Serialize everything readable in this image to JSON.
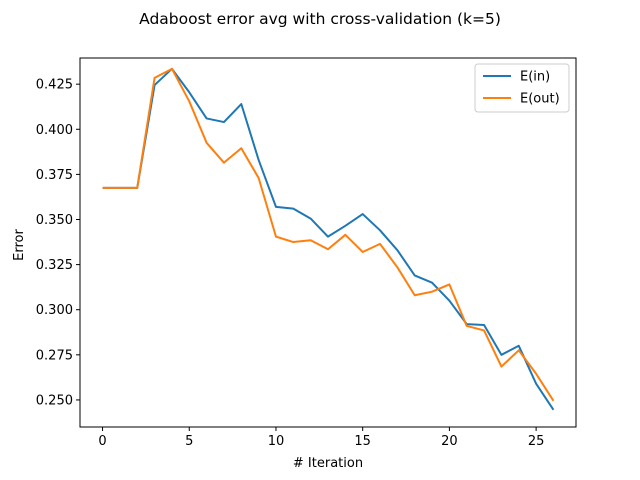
{
  "chart_data": {
    "type": "line",
    "title": "Adaboost error avg with cross-validation (k=5)",
    "xlabel": "# Iteration",
    "ylabel": "Error",
    "xlim": [
      -1.3,
      27.3
    ],
    "ylim": [
      0.235,
      0.4395
    ],
    "xticks": [
      0,
      5,
      10,
      15,
      20,
      25
    ],
    "yticks": [
      0.25,
      0.275,
      0.3,
      0.325,
      0.35,
      0.375,
      0.4,
      0.425
    ],
    "ytick_labels": [
      "0.250",
      "0.275",
      "0.300",
      "0.325",
      "0.350",
      "0.375",
      "0.400",
      "0.425"
    ],
    "grid": false,
    "legend_position": "top-right",
    "x": [
      0,
      1,
      2,
      3,
      4,
      5,
      6,
      7,
      8,
      9,
      10,
      11,
      12,
      13,
      14,
      15,
      16,
      17,
      18,
      19,
      20,
      21,
      22,
      23,
      24,
      25,
      26
    ],
    "series": [
      {
        "name": "E(in)",
        "color": "#1f77b4",
        "values": [
          0.3675,
          0.3675,
          0.3675,
          0.4245,
          0.4335,
          0.4205,
          0.406,
          0.404,
          0.414,
          0.383,
          0.357,
          0.356,
          0.3505,
          0.3405,
          0.3465,
          0.353,
          0.344,
          0.333,
          0.319,
          0.315,
          0.305,
          0.292,
          0.2915,
          0.275,
          0.28,
          0.259,
          0.2445
        ]
      },
      {
        "name": "E(out)",
        "color": "#ff7f0e",
        "values": [
          0.3675,
          0.3675,
          0.3675,
          0.4285,
          0.4335,
          0.4155,
          0.3925,
          0.3815,
          0.3895,
          0.373,
          0.3405,
          0.3375,
          0.3385,
          0.3335,
          0.3415,
          0.332,
          0.3365,
          0.3235,
          0.308,
          0.31,
          0.314,
          0.291,
          0.2885,
          0.2685,
          0.2775,
          0.2645,
          0.2495
        ]
      }
    ]
  }
}
